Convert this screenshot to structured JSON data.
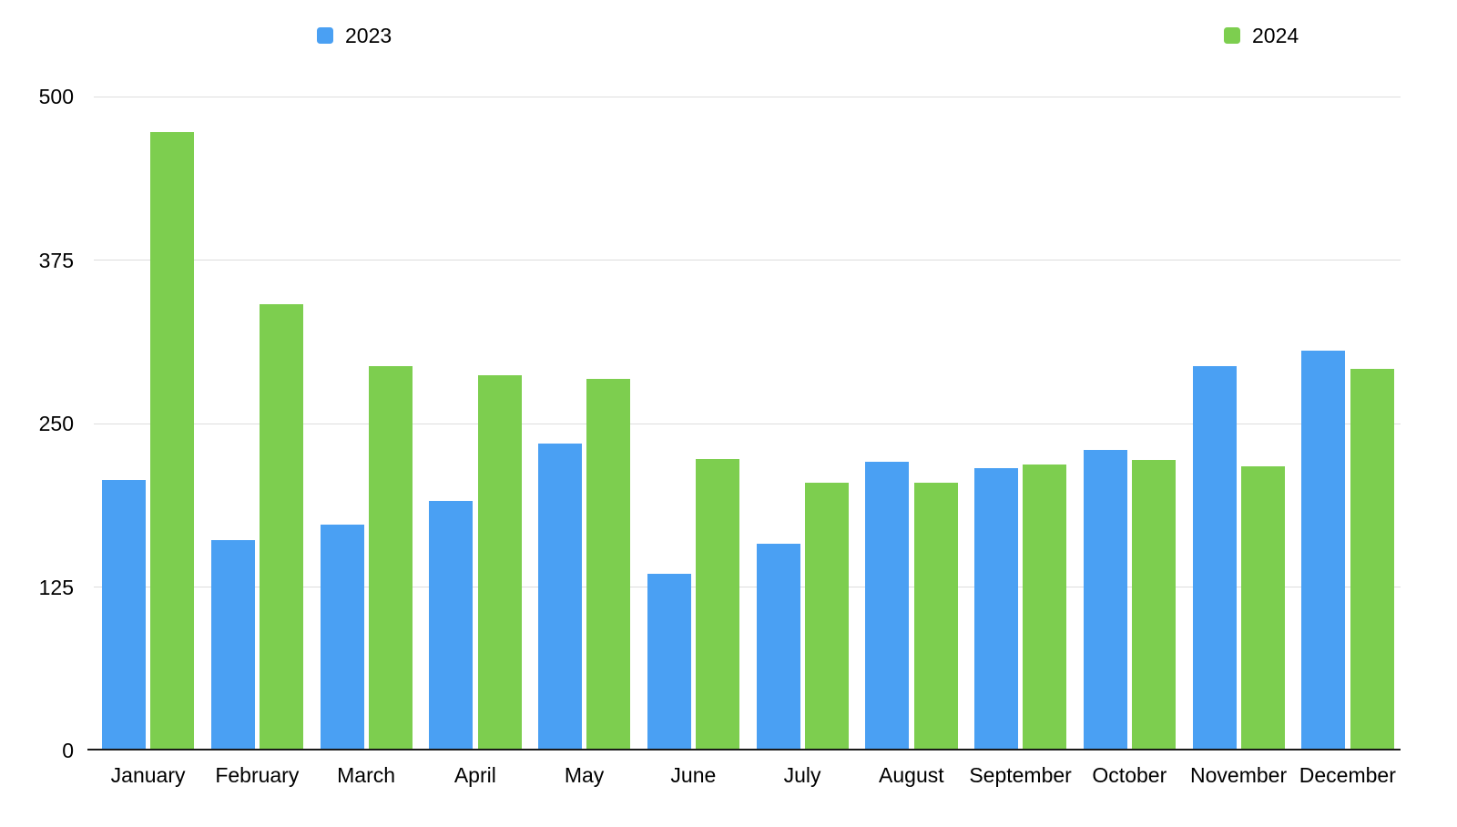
{
  "chart_data": {
    "type": "bar",
    "title": "",
    "xlabel": "",
    "ylabel": "",
    "categories": [
      "January",
      "February",
      "March",
      "April",
      "May",
      "June",
      "July",
      "August",
      "September",
      "October",
      "November",
      "December"
    ],
    "series": [
      {
        "name": "2023",
        "color": "#4AA0F3",
        "values": [
          207,
          161,
          173,
          191,
          235,
          135,
          158,
          221,
          216,
          230,
          294,
          306
        ]
      },
      {
        "name": "2024",
        "color": "#7DCE4F",
        "values": [
          473,
          341,
          294,
          287,
          284,
          223,
          205,
          205,
          219,
          222,
          217,
          292
        ]
      }
    ],
    "ylim": [
      0,
      500
    ],
    "yticks": [
      0,
      125,
      250,
      375,
      500
    ],
    "ytick_labels": [
      "0",
      "125",
      "250",
      "375",
      "500"
    ],
    "grid": true,
    "gridline_color": "#dddddd",
    "legend_position": "top",
    "background_color": "#ffffff"
  }
}
